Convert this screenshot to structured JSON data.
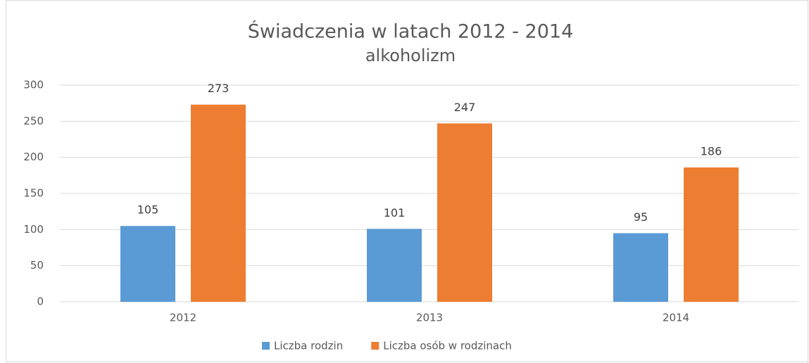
{
  "chart_data": {
    "type": "bar",
    "title": "Świadczenia w latach 2012 - 2014",
    "subtitle": "alkoholizm",
    "categories": [
      "2012",
      "2013",
      "2014"
    ],
    "series": [
      {
        "name": "Liczba rodzin",
        "color": "#5b9bd5",
        "values": [
          105,
          101,
          95
        ]
      },
      {
        "name": "Liczba osób w rodzinach",
        "color": "#ed7d31",
        "values": [
          273,
          247,
          186
        ]
      }
    ],
    "ylim": [
      0,
      300
    ],
    "yticks": [
      0,
      50,
      100,
      150,
      200,
      250,
      300
    ],
    "grid": true,
    "legend": "bottom"
  }
}
